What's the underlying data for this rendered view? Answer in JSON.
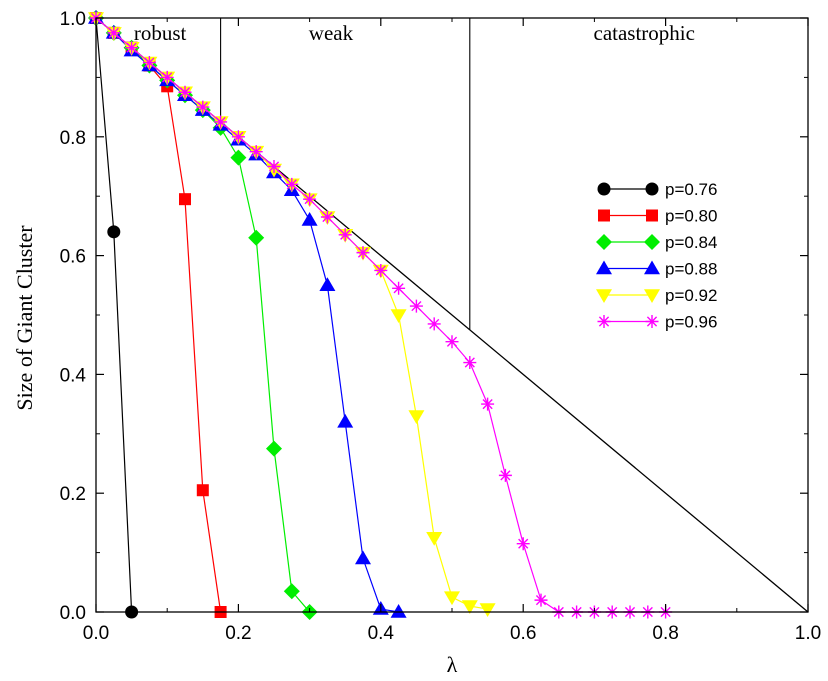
{
  "chart_data": {
    "type": "line",
    "xlabel": "λ",
    "ylabel": "Size of Giant Cluster",
    "xlim": [
      0,
      1
    ],
    "ylim": [
      0,
      1
    ],
    "xticks": [
      "0.0",
      "0.2",
      "0.4",
      "0.6",
      "0.8",
      "1.0"
    ],
    "yticks": [
      "0.0",
      "0.2",
      "0.4",
      "0.6",
      "0.8",
      "1.0"
    ],
    "grid": false,
    "legend_position": "right",
    "reference_line": {
      "x": [
        0,
        1
      ],
      "y": [
        1,
        0
      ],
      "color": "#000000"
    },
    "regions": [
      {
        "label": "robust",
        "x_label": 0.09,
        "boundary_x": 0.175,
        "boundary_y_top": 1.0,
        "boundary_y_bottom": 0.825
      },
      {
        "label": "weak",
        "x_label": 0.33,
        "boundary_x": 0.525,
        "boundary_y_top": 1.0,
        "boundary_y_bottom": 0.475
      },
      {
        "label": "catastrophic",
        "x_label": 0.77
      }
    ],
    "series": [
      {
        "name": "p=0.76",
        "color": "#000000",
        "marker": "circle",
        "x": [
          0.0,
          0.025,
          0.05
        ],
        "y": [
          1.0,
          0.64,
          0.0
        ]
      },
      {
        "name": "p=0.80",
        "color": "#ff0000",
        "marker": "square",
        "x": [
          0.0,
          0.025,
          0.05,
          0.075,
          0.1,
          0.125,
          0.15,
          0.175
        ],
        "y": [
          1.0,
          0.975,
          0.95,
          0.92,
          0.885,
          0.695,
          0.205,
          0.0
        ]
      },
      {
        "name": "p=0.84",
        "color": "#00ee00",
        "marker": "diamond",
        "x": [
          0.0,
          0.025,
          0.05,
          0.075,
          0.1,
          0.125,
          0.15,
          0.175,
          0.2,
          0.225,
          0.25,
          0.275,
          0.3
        ],
        "y": [
          1.0,
          0.975,
          0.95,
          0.92,
          0.895,
          0.87,
          0.845,
          0.815,
          0.765,
          0.63,
          0.275,
          0.035,
          0.0
        ]
      },
      {
        "name": "p=0.88",
        "color": "#0000ff",
        "marker": "triangle-up",
        "x": [
          0.0,
          0.025,
          0.05,
          0.075,
          0.1,
          0.125,
          0.15,
          0.175,
          0.2,
          0.225,
          0.25,
          0.275,
          0.3,
          0.325,
          0.35,
          0.375,
          0.4,
          0.425
        ],
        "y": [
          1.0,
          0.975,
          0.945,
          0.92,
          0.895,
          0.87,
          0.845,
          0.82,
          0.795,
          0.77,
          0.74,
          0.71,
          0.66,
          0.55,
          0.32,
          0.09,
          0.005,
          0.0
        ]
      },
      {
        "name": "p=0.92",
        "color": "#ffff00",
        "marker": "triangle-down",
        "x": [
          0.0,
          0.025,
          0.05,
          0.075,
          0.1,
          0.125,
          0.15,
          0.175,
          0.2,
          0.225,
          0.25,
          0.275,
          0.3,
          0.325,
          0.35,
          0.375,
          0.4,
          0.425,
          0.45,
          0.475,
          0.5,
          0.525,
          0.55
        ],
        "y": [
          1.0,
          0.975,
          0.95,
          0.925,
          0.9,
          0.875,
          0.85,
          0.825,
          0.8,
          0.775,
          0.745,
          0.72,
          0.695,
          0.665,
          0.635,
          0.605,
          0.575,
          0.5,
          0.33,
          0.125,
          0.025,
          0.01,
          0.005
        ]
      },
      {
        "name": "p=0.96",
        "color": "#ff00ff",
        "marker": "asterisk",
        "x": [
          0.0,
          0.025,
          0.05,
          0.075,
          0.1,
          0.125,
          0.15,
          0.175,
          0.2,
          0.225,
          0.25,
          0.275,
          0.3,
          0.325,
          0.35,
          0.375,
          0.4,
          0.425,
          0.45,
          0.475,
          0.5,
          0.525,
          0.55,
          0.575,
          0.6,
          0.625,
          0.65,
          0.675,
          0.7,
          0.725,
          0.75,
          0.775,
          0.8
        ],
        "y": [
          1.0,
          0.975,
          0.95,
          0.925,
          0.9,
          0.875,
          0.85,
          0.825,
          0.8,
          0.775,
          0.75,
          0.72,
          0.695,
          0.665,
          0.635,
          0.605,
          0.575,
          0.545,
          0.515,
          0.485,
          0.455,
          0.42,
          0.35,
          0.23,
          0.115,
          0.02,
          0.0,
          0.0,
          0.0,
          0.0,
          0.0,
          0.0,
          0.0
        ]
      }
    ]
  }
}
